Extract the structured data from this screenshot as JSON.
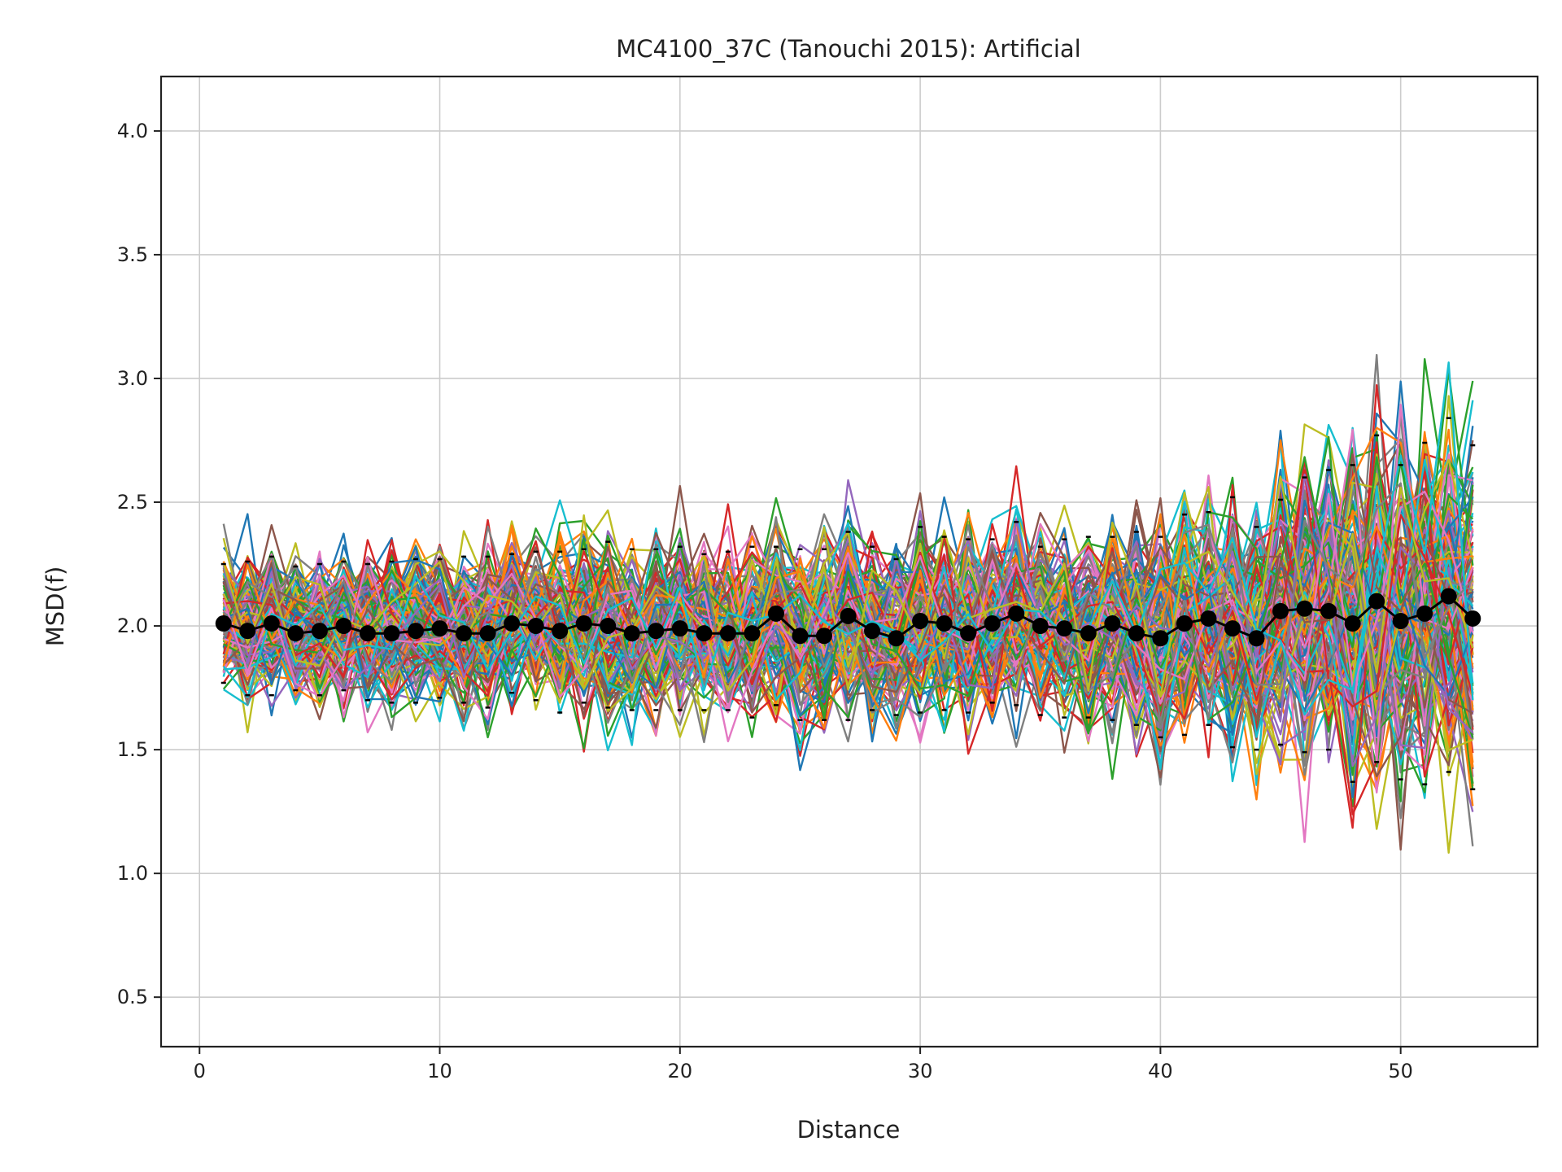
{
  "chart_data": {
    "type": "line",
    "title": "MC4100_37C (Tanouchi 2015): Artificial",
    "xlabel": "Distance",
    "ylabel": "MSD(f)",
    "xlim": [
      -1.6,
      55.7
    ],
    "ylim": [
      0.3,
      4.22
    ],
    "x_ticks": [
      0,
      10,
      20,
      30,
      40,
      50
    ],
    "y_ticks": [
      0.5,
      1.0,
      1.5,
      2.0,
      2.5,
      3.0,
      3.5,
      4.0
    ],
    "grid": true,
    "x": [
      1,
      2,
      3,
      4,
      5,
      6,
      7,
      8,
      9,
      10,
      11,
      12,
      13,
      14,
      15,
      16,
      17,
      18,
      19,
      20,
      21,
      22,
      23,
      24,
      25,
      26,
      27,
      28,
      29,
      30,
      31,
      32,
      33,
      34,
      35,
      36,
      37,
      38,
      39,
      40,
      41,
      42,
      43,
      44,
      45,
      46,
      47,
      48,
      49,
      50,
      51,
      52,
      53
    ],
    "mean": [
      2.01,
      1.98,
      2.01,
      1.97,
      1.98,
      2.0,
      1.97,
      1.97,
      1.98,
      1.99,
      1.97,
      1.97,
      2.01,
      2.0,
      1.98,
      2.01,
      2.0,
      1.97,
      1.98,
      1.99,
      1.97,
      1.97,
      1.97,
      2.05,
      1.96,
      1.96,
      2.04,
      1.98,
      1.95,
      2.02,
      2.01,
      1.97,
      2.01,
      2.05,
      2.0,
      1.99,
      1.97,
      2.01,
      1.97,
      1.95,
      2.01,
      2.03,
      1.99,
      1.95,
      2.06,
      2.07,
      2.06,
      2.01,
      2.1,
      2.02,
      2.05,
      2.12,
      2.03
    ],
    "upper_band": [
      2.25,
      2.26,
      2.28,
      2.24,
      2.25,
      2.26,
      2.25,
      2.26,
      2.27,
      2.27,
      2.28,
      2.28,
      2.29,
      2.3,
      2.3,
      2.31,
      2.34,
      2.31,
      2.31,
      2.32,
      2.29,
      2.3,
      2.32,
      2.32,
      2.31,
      2.31,
      2.38,
      2.32,
      2.27,
      2.4,
      2.36,
      2.35,
      2.35,
      2.42,
      2.32,
      2.35,
      2.36,
      2.36,
      2.38,
      2.36,
      2.45,
      2.46,
      2.52,
      2.4,
      2.51,
      2.6,
      2.63,
      2.65,
      2.77,
      2.65,
      2.74,
      2.84,
      2.73
    ],
    "lower_band": [
      1.77,
      1.72,
      1.72,
      1.74,
      1.72,
      1.74,
      1.7,
      1.69,
      1.69,
      1.71,
      1.69,
      1.67,
      1.73,
      1.7,
      1.65,
      1.69,
      1.67,
      1.66,
      1.66,
      1.66,
      1.66,
      1.66,
      1.63,
      1.68,
      1.62,
      1.62,
      1.62,
      1.66,
      1.64,
      1.65,
      1.66,
      1.65,
      1.69,
      1.68,
      1.64,
      1.63,
      1.63,
      1.62,
      1.6,
      1.55,
      1.56,
      1.6,
      1.51,
      1.5,
      1.52,
      1.49,
      1.5,
      1.37,
      1.45,
      1.38,
      1.36,
      1.41,
      1.34
    ],
    "mean_color": "#000000",
    "palette": [
      "#1f77b4",
      "#ff7f0e",
      "#2ca02c",
      "#d62728",
      "#9467bd",
      "#8c564b",
      "#e377c2",
      "#7f7f7f",
      "#bcbd22",
      "#17becf"
    ],
    "grid_color": "#cccccc"
  }
}
